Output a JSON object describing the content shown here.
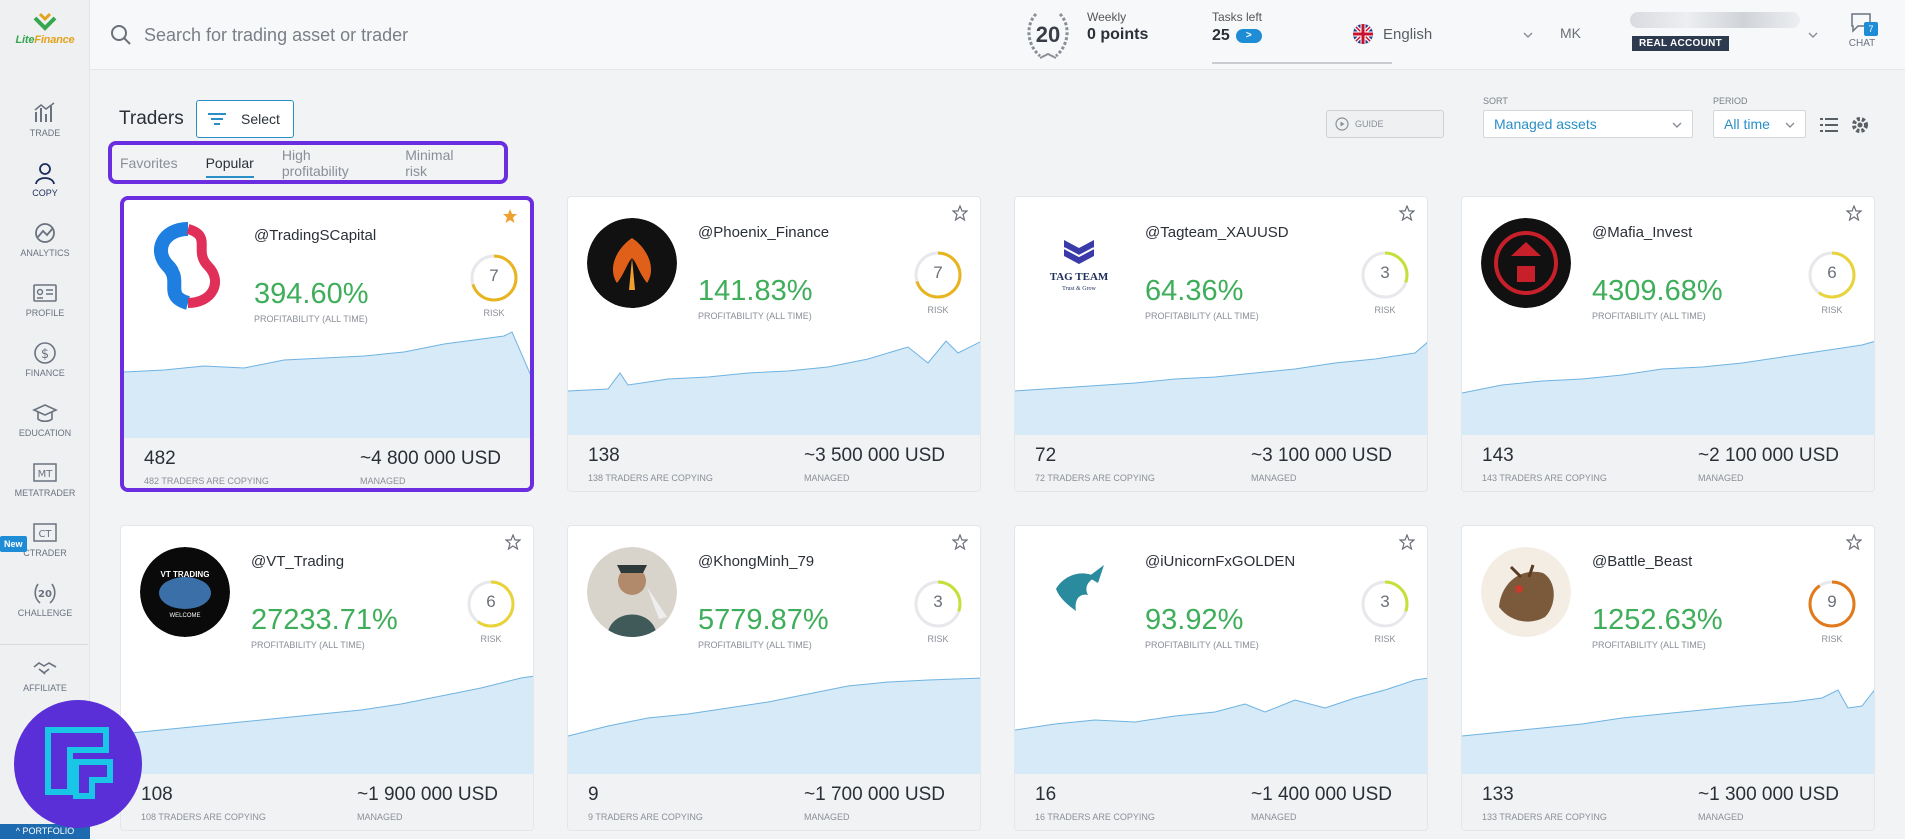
{
  "logo": {
    "name_a": "Lite",
    "name_b": "Finance"
  },
  "sidebar": {
    "items": [
      {
        "label": "TRADE",
        "icon": "trade-chart-icon"
      },
      {
        "label": "COPY",
        "icon": "copy-user-icon"
      },
      {
        "label": "ANALYTICS",
        "icon": "analytics-icon"
      },
      {
        "label": "PROFILE",
        "icon": "profile-card-icon"
      },
      {
        "label": "FINANCE",
        "icon": "dollar-coin-icon"
      },
      {
        "label": "EDUCATION",
        "icon": "graduation-cap-icon"
      },
      {
        "label": "METATRADER",
        "icon": "mt-icon"
      },
      {
        "label": "CTRADER",
        "icon": "ct-icon"
      },
      {
        "label": "CHALLENGE",
        "icon": "laurel-20-icon"
      },
      {
        "label": "AFFILIATE",
        "icon": "handshake-icon"
      }
    ],
    "new_badge": "New",
    "portfolio": "PORTFOLIO",
    "mt_text": "MT",
    "ct_text": "CT",
    "challenge_num": "20"
  },
  "header": {
    "search_placeholder": "Search for trading asset or trader",
    "challenge_level": "20",
    "weekly_label": "Weekly",
    "weekly_value": "0 points",
    "tasks_label": "Tasks left",
    "tasks_value": "25",
    "tasks_go": ">",
    "language": "English",
    "user_initials": "MK",
    "account_type": "REAL ACCOUNT",
    "chat_label": "CHAT",
    "chat_count": "7"
  },
  "toolbar": {
    "title": "Traders",
    "select_label": "Select",
    "tabs": [
      "Favorites",
      "Popular",
      "High profitability",
      "Minimal risk"
    ],
    "active_tab": 1,
    "guide_label": "GUIDE",
    "sort_caption": "SORT",
    "sort_value": "Managed assets",
    "period_caption": "PERIOD",
    "period_value": "All time"
  },
  "colors": {
    "accent": "#2a8fc7",
    "profit": "#3fae5a",
    "highlight": "#6a2ee0",
    "spark_fill": "#d6eaf8",
    "spark_line": "#6fb3e0"
  },
  "cards": [
    {
      "name": "@TradingSCapital",
      "profit": "394.60%",
      "profit_label": "PROFITABILITY (ALL TIME)",
      "risk": "7",
      "risk_label": "RISK",
      "copiers": "482",
      "copiers_label": "482 TRADERS ARE COPYING",
      "managed": "~4 800 000 USD",
      "managed_label": "MANAGED",
      "favorite": true
    },
    {
      "name": "@Phoenix_Finance",
      "profit": "141.83%",
      "profit_label": "PROFITABILITY (ALL TIME)",
      "risk": "7",
      "risk_label": "RISK",
      "copiers": "138",
      "copiers_label": "138 TRADERS ARE COPYING",
      "managed": "~3 500 000 USD",
      "managed_label": "MANAGED",
      "favorite": false
    },
    {
      "name": "@Tagteam_XAUUSD",
      "profit": "64.36%",
      "profit_label": "PROFITABILITY (ALL TIME)",
      "risk": "3",
      "risk_label": "RISK",
      "copiers": "72",
      "copiers_label": "72 TRADERS ARE COPYING",
      "managed": "~3 100 000 USD",
      "managed_label": "MANAGED",
      "favorite": false,
      "avatar_text": "TAG TEAM",
      "avatar_sub": "Trust & Grow"
    },
    {
      "name": "@Mafia_Invest",
      "profit": "4309.68%",
      "profit_label": "PROFITABILITY (ALL TIME)",
      "risk": "6",
      "risk_label": "RISK",
      "copiers": "143",
      "copiers_label": "143 TRADERS ARE COPYING",
      "managed": "~2 100 000 USD",
      "managed_label": "MANAGED",
      "favorite": false
    },
    {
      "name": "@VT_Trading",
      "profit": "27233.71%",
      "profit_label": "PROFITABILITY (ALL TIME)",
      "risk": "6",
      "risk_label": "RISK",
      "copiers": "108",
      "copiers_label": "108 TRADERS ARE COPYING",
      "managed": "~1 900 000 USD",
      "managed_label": "MANAGED",
      "favorite": false,
      "avatar_text": "VT TRADING",
      "avatar_sub": "WELCOME"
    },
    {
      "name": "@KhongMinh_79",
      "profit": "5779.87%",
      "profit_label": "PROFITABILITY (ALL TIME)",
      "risk": "3",
      "risk_label": "RISK",
      "copiers": "9",
      "copiers_label": "9 TRADERS ARE COPYING",
      "managed": "~1 700 000 USD",
      "managed_label": "MANAGED",
      "favorite": false
    },
    {
      "name": "@iUnicornFxGOLDEN",
      "profit": "93.92%",
      "profit_label": "PROFITABILITY (ALL TIME)",
      "risk": "3",
      "risk_label": "RISK",
      "copiers": "16",
      "copiers_label": "16 TRADERS ARE COPYING",
      "managed": "~1 400 000 USD",
      "managed_label": "MANAGED",
      "favorite": false
    },
    {
      "name": "@Battle_Beast",
      "profit": "1252.63%",
      "profit_label": "PROFITABILITY (ALL TIME)",
      "risk": "9",
      "risk_label": "RISK",
      "copiers": "133",
      "copiers_label": "133 TRADERS ARE COPYING",
      "managed": "~1 300 000 USD",
      "managed_label": "MANAGED",
      "favorite": false
    }
  ]
}
